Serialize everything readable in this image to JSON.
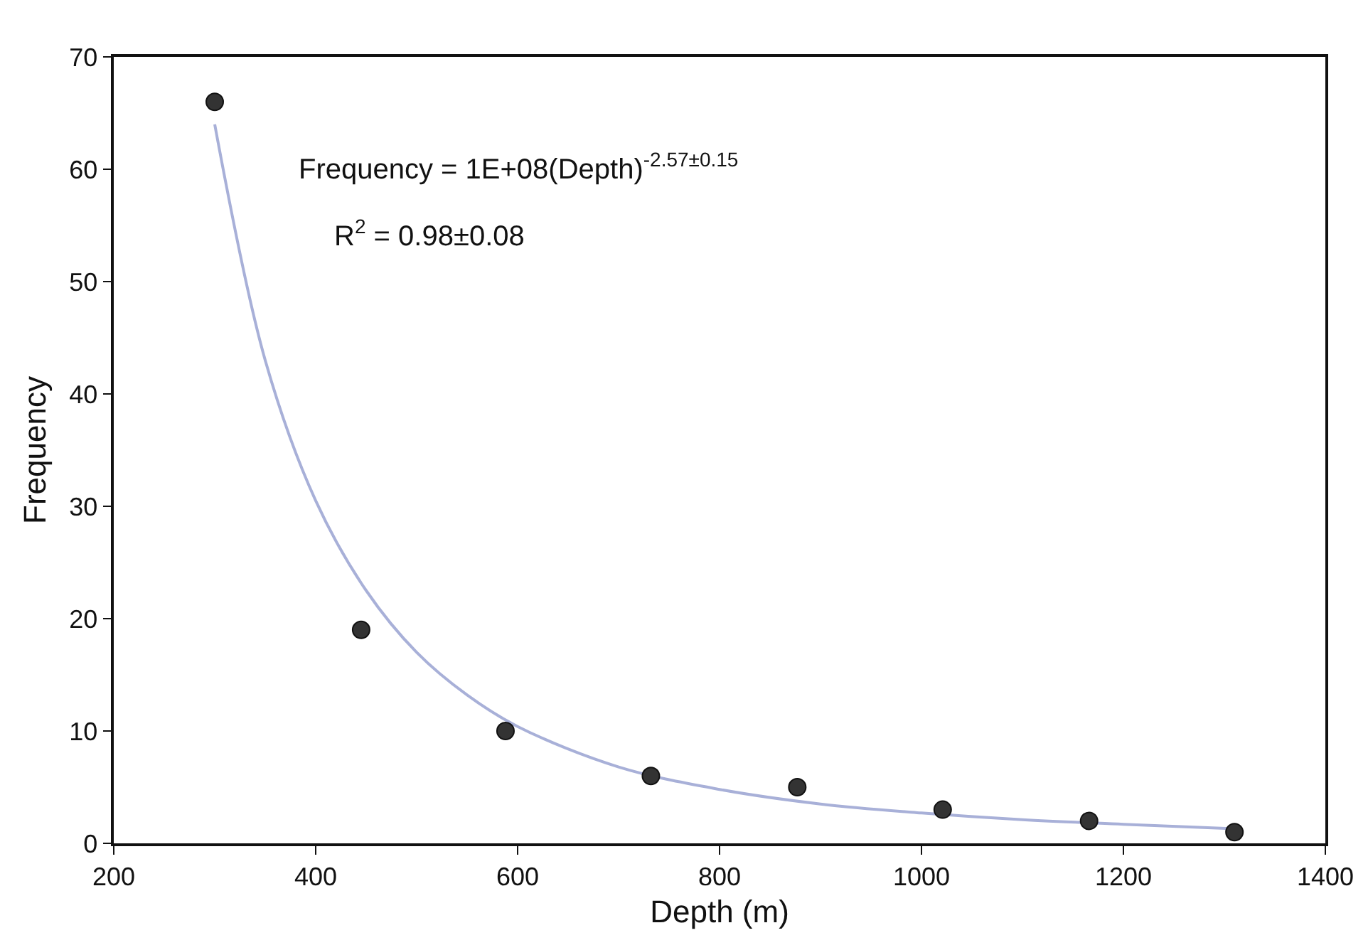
{
  "chart_data": {
    "type": "scatter",
    "xlabel": "Depth (m)",
    "ylabel": "Frequency",
    "annotations": [
      "Frequency = 1E+08(Depth)$^{-2.57±0.15}$",
      "R$^{2}$ = 0.98±0.08"
    ],
    "xlim": [
      200,
      1400
    ],
    "xticks": [
      200,
      400,
      600,
      800,
      1000,
      1200,
      1400
    ],
    "ylim": [
      0,
      70
    ],
    "yticks": [
      0,
      10,
      20,
      30,
      40,
      50,
      60,
      70
    ],
    "grid": false,
    "legend": false,
    "series": [
      {
        "marker": "circle",
        "color": "#333333",
        "x": [
          300,
          445,
          588,
          732,
          877,
          1021,
          1166,
          1310
        ],
        "values": [
          66,
          19,
          10,
          6,
          5,
          3,
          2,
          1
        ]
      },
      {
        "type": "line",
        "marker": "none",
        "color": "#a8b0d8",
        "x": [
          300,
          350,
          400,
          450,
          500,
          550,
          600,
          700,
          800,
          900,
          1000,
          1100,
          1200,
          1310
        ],
        "values": [
          64,
          43,
          30.5,
          22.5,
          17,
          13.2,
          10.4,
          6.8,
          4.8,
          3.5,
          2.7,
          2.1,
          1.7,
          1.3
        ]
      }
    ]
  }
}
